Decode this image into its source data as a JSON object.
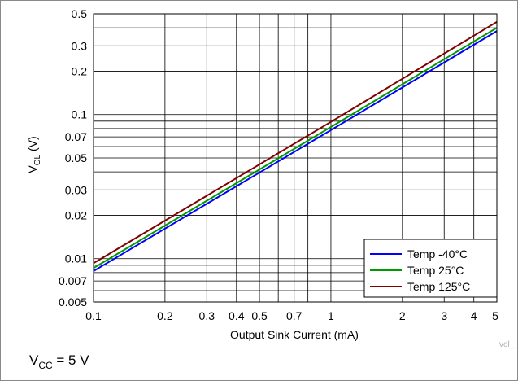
{
  "chart_data": {
    "type": "line",
    "xscale": "log",
    "yscale": "log",
    "xlim": [
      0.1,
      5
    ],
    "ylim": [
      0.005,
      0.5
    ],
    "grid": true,
    "xlabel": "Output Sink Current (mA)",
    "ylabel": {
      "main": "V",
      "sub": "OL",
      "unit": " (V)"
    },
    "x_ticks": [
      {
        "v": 0.1,
        "label": "0.1"
      },
      {
        "v": 0.2,
        "label": "0.2"
      },
      {
        "v": 0.3,
        "label": "0.3"
      },
      {
        "v": 0.4,
        "label": "0.4"
      },
      {
        "v": 0.5,
        "label": "0.5"
      },
      {
        "v": 0.7,
        "label": "0.7"
      },
      {
        "v": 1,
        "label": "1"
      },
      {
        "v": 2,
        "label": "2"
      },
      {
        "v": 3,
        "label": "3"
      },
      {
        "v": 4,
        "label": "4"
      },
      {
        "v": 5,
        "label": "5"
      }
    ],
    "x_minor_grid": [
      0.6,
      0.8,
      0.9
    ],
    "y_ticks": [
      {
        "v": 0.005,
        "label": "0.005"
      },
      {
        "v": 0.007,
        "label": "0.007"
      },
      {
        "v": 0.01,
        "label": "0.01"
      },
      {
        "v": 0.02,
        "label": "0.02"
      },
      {
        "v": 0.03,
        "label": "0.03"
      },
      {
        "v": 0.05,
        "label": "0.05"
      },
      {
        "v": 0.07,
        "label": "0.07"
      },
      {
        "v": 0.1,
        "label": "0.1"
      },
      {
        "v": 0.2,
        "label": "0.2"
      },
      {
        "v": 0.3,
        "label": "0.3"
      },
      {
        "v": 0.5,
        "label": "0.5"
      }
    ],
    "y_minor_grid": [
      0.006,
      0.008,
      0.009,
      0.04,
      0.06,
      0.08,
      0.09,
      0.4
    ],
    "series": [
      {
        "name": "Temp -40°C",
        "color": "#0000ff",
        "x": [
          0.1,
          1,
          5
        ],
        "y": [
          0.0082,
          0.078,
          0.38
        ]
      },
      {
        "name": "Temp 25°C",
        "color": "#009900",
        "x": [
          0.1,
          1,
          5
        ],
        "y": [
          0.0086,
          0.082,
          0.4
        ]
      },
      {
        "name": "Temp 125°C",
        "color": "#800000",
        "x": [
          0.1,
          1,
          5
        ],
        "y": [
          0.0093,
          0.089,
          0.44
        ]
      }
    ],
    "legend_position": "bottom-right"
  },
  "footer": {
    "vcc_main": "V",
    "vcc_sub": "CC",
    "vcc_rest": " = 5 V"
  },
  "tag": "vol_"
}
